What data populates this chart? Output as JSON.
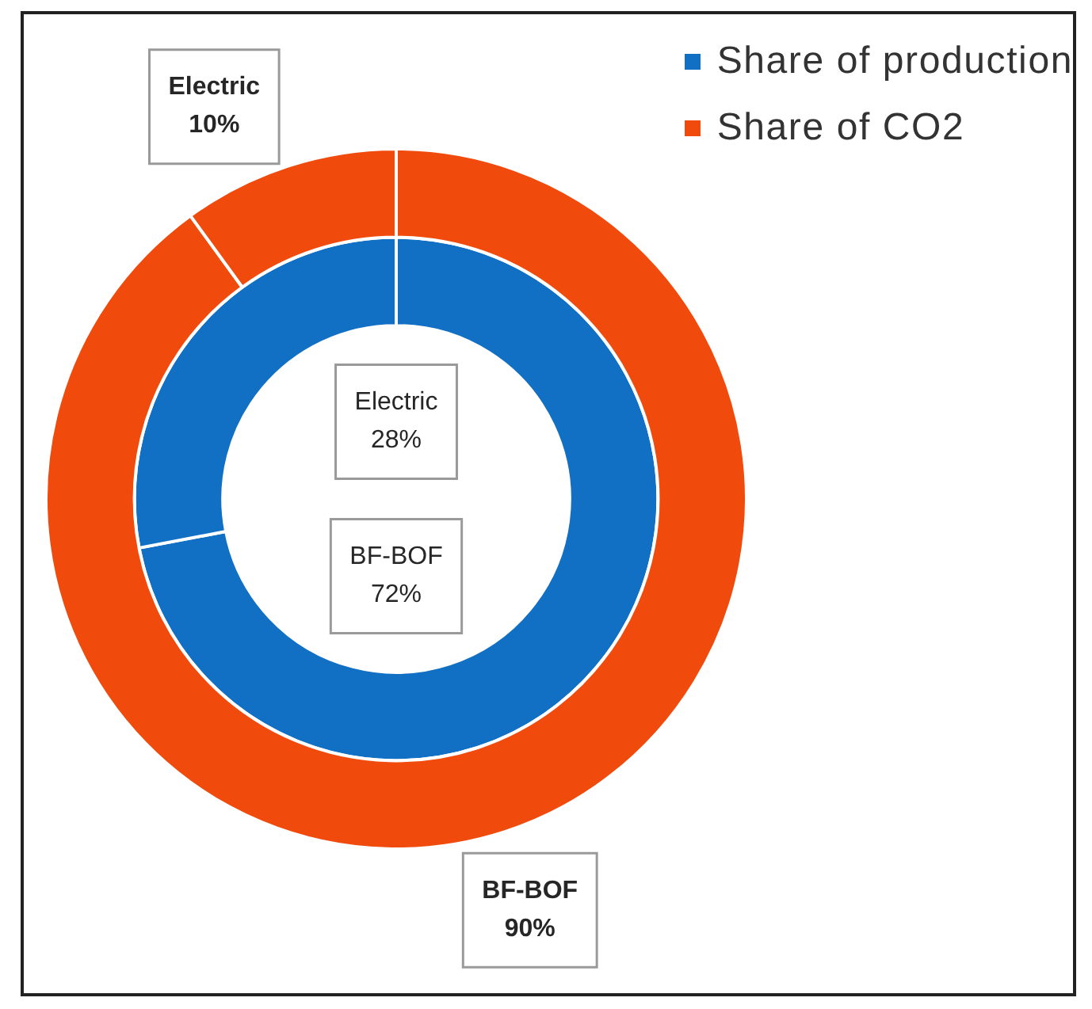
{
  "chart_data": {
    "type": "donut",
    "categories": [
      "BF-BOF",
      "Electric"
    ],
    "series": [
      {
        "name": "Share of production",
        "color": "#1170c4",
        "values": [
          72,
          28
        ],
        "value_labels": [
          "72%",
          "28%"
        ]
      },
      {
        "name": "Share of CO2",
        "color": "#f04a0c",
        "values": [
          90,
          10
        ],
        "value_labels": [
          "90%",
          "10%"
        ]
      }
    ],
    "legend": "top right"
  }
}
